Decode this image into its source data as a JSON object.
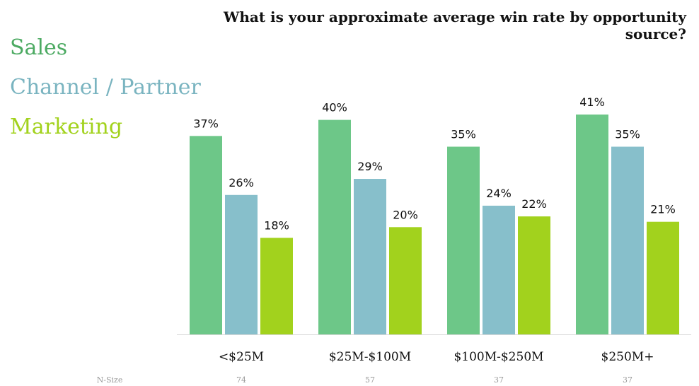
{
  "chart_data": {
    "type": "bar",
    "title": "What is your approximate average win rate by opportunity source?",
    "categories": [
      "<$25M",
      "$25M-$100M",
      "$100M-$250M",
      "$250M+"
    ],
    "series": [
      {
        "name": "Sales",
        "color": "#6dc788",
        "values": [
          37,
          40,
          35,
          41
        ],
        "labels": [
          "37%",
          "40%",
          "35%",
          "41%"
        ]
      },
      {
        "name": "Channel / Partner",
        "color": "#87bfcb",
        "values": [
          26,
          29,
          24,
          35
        ],
        "labels": [
          "26%",
          "29%",
          "24%",
          "35%"
        ]
      },
      {
        "name": "Marketing",
        "color": "#a2d21d",
        "values": [
          18,
          20,
          22,
          21
        ],
        "labels": [
          "18%",
          "20%",
          "22%",
          "21%"
        ]
      }
    ],
    "ylim": [
      0,
      41
    ],
    "grid": false,
    "legend_position": "left",
    "n_size": {
      "label": "N-Size",
      "values": [
        "74",
        "57",
        "37",
        "37"
      ]
    }
  }
}
